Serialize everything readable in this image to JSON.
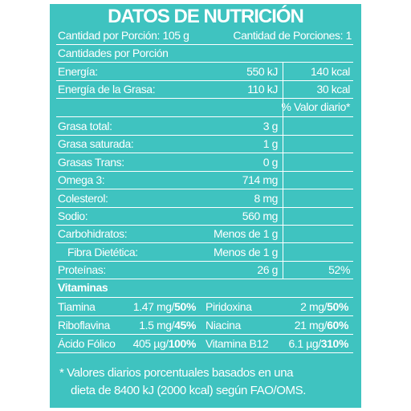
{
  "title": "DATOS DE NUTRICIÓN",
  "serving": {
    "size": "Cantidad por Porción: 105 g",
    "count": "Cantidad de Porciones: 1"
  },
  "amounts_header": "Cantidades por Porción",
  "energy": [
    {
      "label": "Energía:",
      "kj": "550 kJ",
      "kcal": "140 kcal"
    },
    {
      "label": "Energía de la Grasa:",
      "kj": "110 kJ",
      "kcal": "30 kcal"
    }
  ],
  "daily_value_header": "% Valor diario*",
  "nutrients": [
    {
      "label": "Grasa total:",
      "amount": "3 g"
    },
    {
      "label": "Grasa saturada:",
      "amount": "1 g"
    },
    {
      "label": "Grasas Trans:",
      "amount": "0 g"
    },
    {
      "label": "Omega 3:",
      "amount": "714 mg"
    },
    {
      "label": "Colesterol:",
      "amount": "8 mg"
    },
    {
      "label": "Sodio:",
      "amount": "560 mg"
    },
    {
      "label": "Carbohidratos:",
      "amount": "Menos de 1 g"
    },
    {
      "label": "Fibra Dietética:",
      "amount": "Menos de 1 g"
    },
    {
      "label": "Proteínas:",
      "amount": "26 g",
      "dv": "52%"
    }
  ],
  "vitamins_header": "Vitaminas",
  "vitamins": [
    [
      {
        "name": "Tiamina",
        "value": "1.47 mg/",
        "dv": "50%"
      },
      {
        "name": "Piridoxina",
        "value": "2 mg/",
        "dv": "50%"
      }
    ],
    [
      {
        "name": "Riboflavina",
        "value": "1.5 mg/",
        "dv": "45%"
      },
      {
        "name": "Niacina",
        "value": "21 mg/",
        "dv": "60%"
      }
    ],
    [
      {
        "name": "Ácido Fólico",
        "value": "405 µg/",
        "dv": "100%"
      },
      {
        "name": "Vitamina B12",
        "value": "6.1 µg/",
        "dv": "310%"
      }
    ]
  ],
  "footnote": [
    "* Valores diarios porcentuales basados en una",
    "dieta de 8400 kJ (2000 kcal) según FAO/OMS."
  ]
}
